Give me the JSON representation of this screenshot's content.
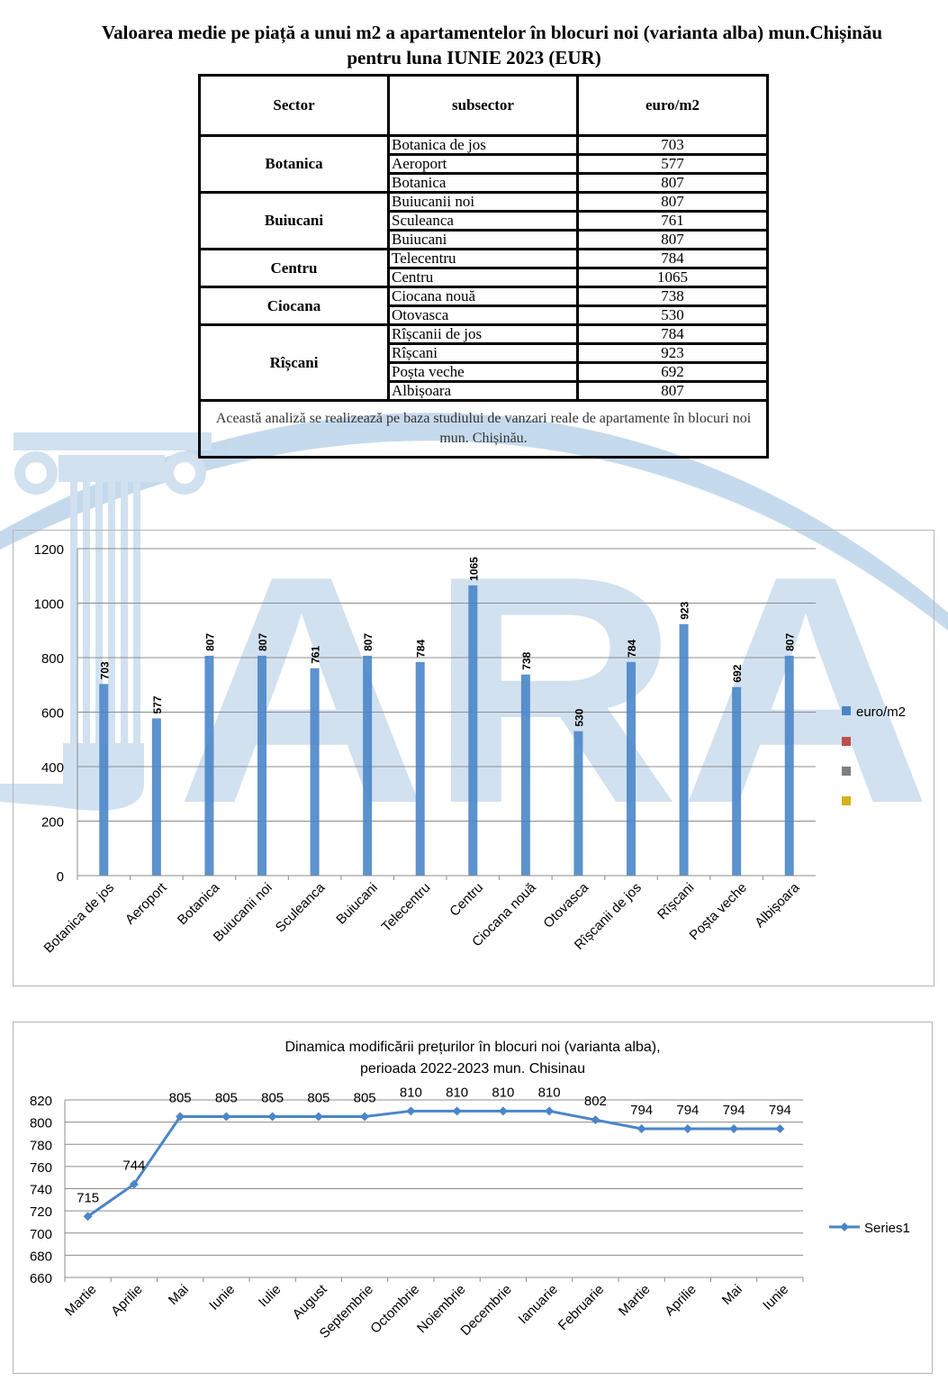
{
  "page": {
    "title_line1": "Valoarea medie pe piață a unui m2 a apartamentelor în blocuri noi (varianta alba) mun.Chișinău",
    "title_line2": "pentru luna IUNIE 2023 (EUR)"
  },
  "table": {
    "headers": [
      "Sector",
      "subsector",
      "euro/m2"
    ],
    "groups": [
      {
        "sector": "Botanica",
        "rows": [
          [
            "Botanica de jos",
            "703"
          ],
          [
            "Aeroport",
            "577"
          ],
          [
            "Botanica",
            "807"
          ]
        ]
      },
      {
        "sector": "Buiucani",
        "rows": [
          [
            "Buiucanii noi",
            "807"
          ],
          [
            "Sculeanca",
            "761"
          ],
          [
            "Buiucani",
            "807"
          ]
        ]
      },
      {
        "sector": "Centru",
        "rows": [
          [
            "Telecentru",
            "784"
          ],
          [
            "Centru",
            "1065"
          ]
        ]
      },
      {
        "sector": "Ciocana",
        "rows": [
          [
            "Ciocana nouă",
            "738"
          ],
          [
            "Otovasca",
            "530"
          ]
        ]
      },
      {
        "sector": "Rîșcani",
        "rows": [
          [
            "Rîșcanii de jos",
            "784"
          ],
          [
            "Rîșcani",
            "923"
          ],
          [
            "Poșta veche",
            "692"
          ],
          [
            "Albișoara",
            "807"
          ]
        ]
      }
    ],
    "note": "Această analiză se realizează pe baza studiului de vanzari reale de apartamente în blocuri noi mun. Chișinău."
  },
  "watermark": {
    "text": "ARA",
    "color": "#c9dcee"
  },
  "chart_data": [
    {
      "type": "bar",
      "categories": [
        "Botanica de jos",
        "Aeroport",
        "Botanica",
        "Buiucanii noi",
        "Sculeanca",
        "Buiucani",
        "Telecentru",
        "Centru",
        "Ciocana nouă",
        "Otovasca",
        "Rîșcanii de jos",
        "Rîșcani",
        "Poșta veche",
        "Albișoara"
      ],
      "series": [
        {
          "name": "euro/m2",
          "values": [
            703,
            577,
            807,
            807,
            761,
            807,
            784,
            1065,
            738,
            530,
            784,
            923,
            692,
            807
          ],
          "color": "#4a86c8"
        }
      ],
      "legend_extra_colors": [
        "#c0504d",
        "#7f7f7f",
        "#d4b21a"
      ],
      "ylim": [
        0,
        1200
      ],
      "yticks": [
        0,
        200,
        400,
        600,
        800,
        1000,
        1200
      ],
      "grid": true,
      "legend": "right"
    },
    {
      "type": "line",
      "title": "Dinamica modificării prețurilor în blocuri noi (varianta alba),",
      "subtitle": "perioada 2022-2023 mun. Chisinau",
      "categories": [
        "Martie",
        "Aprilie",
        "Mai",
        "Iunie",
        "Iulie",
        "August",
        "Septembrie",
        "Octombrie",
        "Noiembrie",
        "Decembrie",
        "Ianuarie",
        "Februarie",
        "Martie",
        "Aprilie",
        "Mai",
        "Iunie"
      ],
      "series": [
        {
          "name": "Series1",
          "values": [
            715,
            744,
            805,
            805,
            805,
            805,
            805,
            810,
            810,
            810,
            810,
            802,
            794,
            794,
            794,
            794
          ],
          "color": "#4a86c8"
        }
      ],
      "ylim": [
        660,
        820
      ],
      "yticks": [
        660,
        680,
        700,
        720,
        740,
        760,
        780,
        800,
        820
      ],
      "grid": true,
      "legend": "right"
    }
  ]
}
